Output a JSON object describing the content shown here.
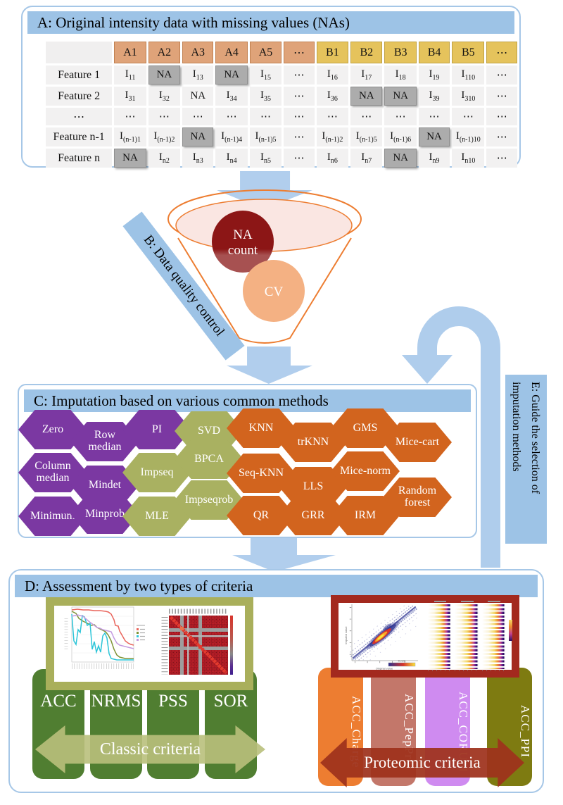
{
  "panel_a": {
    "title": "A: Original intensity data with missing values (NAs)",
    "table": {
      "col_headers": [
        {
          "v": "A1",
          "g": "a"
        },
        {
          "v": "A2",
          "g": "a"
        },
        {
          "v": "A3",
          "g": "a"
        },
        {
          "v": "A4",
          "g": "a"
        },
        {
          "v": "A5",
          "g": "a"
        },
        {
          "v": "⋯",
          "g": "a"
        },
        {
          "v": "B1",
          "g": "b"
        },
        {
          "v": "B2",
          "g": "b"
        },
        {
          "v": "B3",
          "g": "b"
        },
        {
          "v": "B4",
          "g": "b"
        },
        {
          "v": "B5",
          "g": "b"
        },
        {
          "v": "⋯",
          "g": "b"
        }
      ],
      "rows": [
        {
          "label": "Feature 1",
          "cells": [
            {
              "t": "sub",
              "b": "I",
              "s": "11"
            },
            {
              "t": "na"
            },
            {
              "t": "sub",
              "b": "I",
              "s": "13"
            },
            {
              "t": "na"
            },
            {
              "t": "sub",
              "b": "I",
              "s": "15"
            },
            {
              "t": "dots"
            },
            {
              "t": "sub",
              "b": "I",
              "s": "16"
            },
            {
              "t": "sub",
              "b": "I",
              "s": "17"
            },
            {
              "t": "sub",
              "b": "I",
              "s": "18"
            },
            {
              "t": "sub",
              "b": "I",
              "s": "19"
            },
            {
              "t": "sub",
              "b": "I",
              "s": "110"
            },
            {
              "t": "dots"
            }
          ]
        },
        {
          "label": "Feature 2",
          "cells": [
            {
              "t": "sub",
              "b": "I",
              "s": "31"
            },
            {
              "t": "sub",
              "b": "I",
              "s": "32"
            },
            {
              "t": "text",
              "v": "NA"
            },
            {
              "t": "sub",
              "b": "I",
              "s": "34"
            },
            {
              "t": "sub",
              "b": "I",
              "s": "35"
            },
            {
              "t": "dots"
            },
            {
              "t": "sub",
              "b": "I",
              "s": "36"
            },
            {
              "t": "na"
            },
            {
              "t": "na"
            },
            {
              "t": "sub",
              "b": "I",
              "s": "39"
            },
            {
              "t": "sub",
              "b": "I",
              "s": "310"
            },
            {
              "t": "dots"
            }
          ]
        },
        {
          "label": "⋯",
          "cells": [
            {
              "t": "dots"
            },
            {
              "t": "dots"
            },
            {
              "t": "dots"
            },
            {
              "t": "dots"
            },
            {
              "t": "dots"
            },
            {
              "t": "dots"
            },
            {
              "t": "dots"
            },
            {
              "t": "dots"
            },
            {
              "t": "dots"
            },
            {
              "t": "dots"
            },
            {
              "t": "dots"
            },
            {
              "t": "dots"
            }
          ]
        },
        {
          "label": "Feature n-1",
          "cells": [
            {
              "t": "sub",
              "b": "I",
              "s": "(n-1)1"
            },
            {
              "t": "sub",
              "b": "I",
              "s": "(n-1)2"
            },
            {
              "t": "na"
            },
            {
              "t": "sub",
              "b": "I",
              "s": "(n-1)4"
            },
            {
              "t": "sub",
              "b": "I",
              "s": "(n-1)5"
            },
            {
              "t": "dots"
            },
            {
              "t": "sub",
              "b": "I",
              "s": "(n-1)2"
            },
            {
              "t": "sub",
              "b": "I",
              "s": "(n-1)5"
            },
            {
              "t": "sub",
              "b": "I",
              "s": "(n-1)6"
            },
            {
              "t": "na"
            },
            {
              "t": "sub",
              "b": "I",
              "s": "(n-1)10"
            },
            {
              "t": "dots"
            }
          ]
        },
        {
          "label": "Feature n",
          "cells": [
            {
              "t": "na"
            },
            {
              "t": "sub",
              "b": "I",
              "s": "n2"
            },
            {
              "t": "sub",
              "b": "I",
              "s": "n3"
            },
            {
              "t": "sub",
              "b": "I",
              "s": "n4"
            },
            {
              "t": "sub",
              "b": "I",
              "s": "n5"
            },
            {
              "t": "dots"
            },
            {
              "t": "sub",
              "b": "I",
              "s": "n6"
            },
            {
              "t": "sub",
              "b": "I",
              "s": "n7"
            },
            {
              "t": "na"
            },
            {
              "t": "sub",
              "b": "I",
              "s": "n9"
            },
            {
              "t": "sub",
              "b": "I",
              "s": "n10"
            },
            {
              "t": "dots"
            }
          ]
        }
      ]
    }
  },
  "panel_b": {
    "label": "B: Data quality control",
    "bubble_na": "NA count",
    "bubble_na_line1": "NA",
    "bubble_na_line2": "count",
    "bubble_cv": "CV"
  },
  "panel_c": {
    "title": "C: Imputation based on various common methods",
    "methods": [
      {
        "label": "Zero",
        "group": "purple"
      },
      {
        "label": "Column median",
        "group": "purple",
        "two_line": true
      },
      {
        "label": "Minimum",
        "group": "purple"
      },
      {
        "label": "Row median",
        "group": "purple",
        "two_line": true
      },
      {
        "label": "Mindet",
        "group": "purple"
      },
      {
        "label": "Minprob",
        "group": "purple"
      },
      {
        "label": "PI",
        "group": "purple"
      },
      {
        "label": "Impseq",
        "group": "olive"
      },
      {
        "label": "MLE",
        "group": "olive"
      },
      {
        "label": "SVD",
        "group": "olive"
      },
      {
        "label": "BPCA",
        "group": "olive"
      },
      {
        "label": "Impseqrob",
        "group": "olive"
      },
      {
        "label": "KNN",
        "group": "orange"
      },
      {
        "label": "Seq-KNN",
        "group": "orange"
      },
      {
        "label": "QR",
        "group": "orange"
      },
      {
        "label": "trKNN",
        "group": "orange"
      },
      {
        "label": "LLS",
        "group": "orange"
      },
      {
        "label": "GRR",
        "group": "orange"
      },
      {
        "label": "GMS",
        "group": "orange"
      },
      {
        "label": "Mice-norm",
        "group": "orange"
      },
      {
        "label": "IRM",
        "group": "orange"
      },
      {
        "label": "Mice-cart",
        "group": "orange"
      },
      {
        "label": "Random forest",
        "group": "orange",
        "two_line": true
      }
    ]
  },
  "panel_d": {
    "title": "D: Assessment by two types of criteria",
    "classic": {
      "criteria": [
        "ACC",
        "NRMS",
        "PSS",
        "SOR"
      ],
      "arrow_label": "Classic criteria"
    },
    "proteomic": {
      "criteria": [
        {
          "label": "ACC_Charge",
          "color": "#ED7D31"
        },
        {
          "label": "ACC_PepProt",
          "color": "#C3776A"
        },
        {
          "label": "ACC_CORUM",
          "color": "#CF8BF0"
        },
        {
          "label": "ACC_PPI",
          "color": "#7E7B11"
        }
      ],
      "arrow_label": "Proteomic criteria"
    }
  },
  "panel_e": {
    "label": "E: Guide the selection of imputation methods"
  },
  "thumbnails": {
    "scatter": {
      "xlabel": "Original value",
      "ylabel": "Imputed value",
      "legend": "Density"
    }
  },
  "colors": {
    "panel_blue": "#9DC3E6",
    "arrow_blue": "#A6C7E7",
    "hex_purple": "#7B38A2",
    "hex_olive": "#A9B161",
    "hex_orange": "#D2641E",
    "green_bar": "#507E31",
    "khaki_frame": "#A9AF5B",
    "red_frame": "#A3291E",
    "funnel_orange": "#ED7D31",
    "na_circle": "#8C1616",
    "cv_circle": "#F4B183",
    "header_a": "#DFA379",
    "header_b": "#E5C35C",
    "na_cell": "#ACACAC"
  }
}
